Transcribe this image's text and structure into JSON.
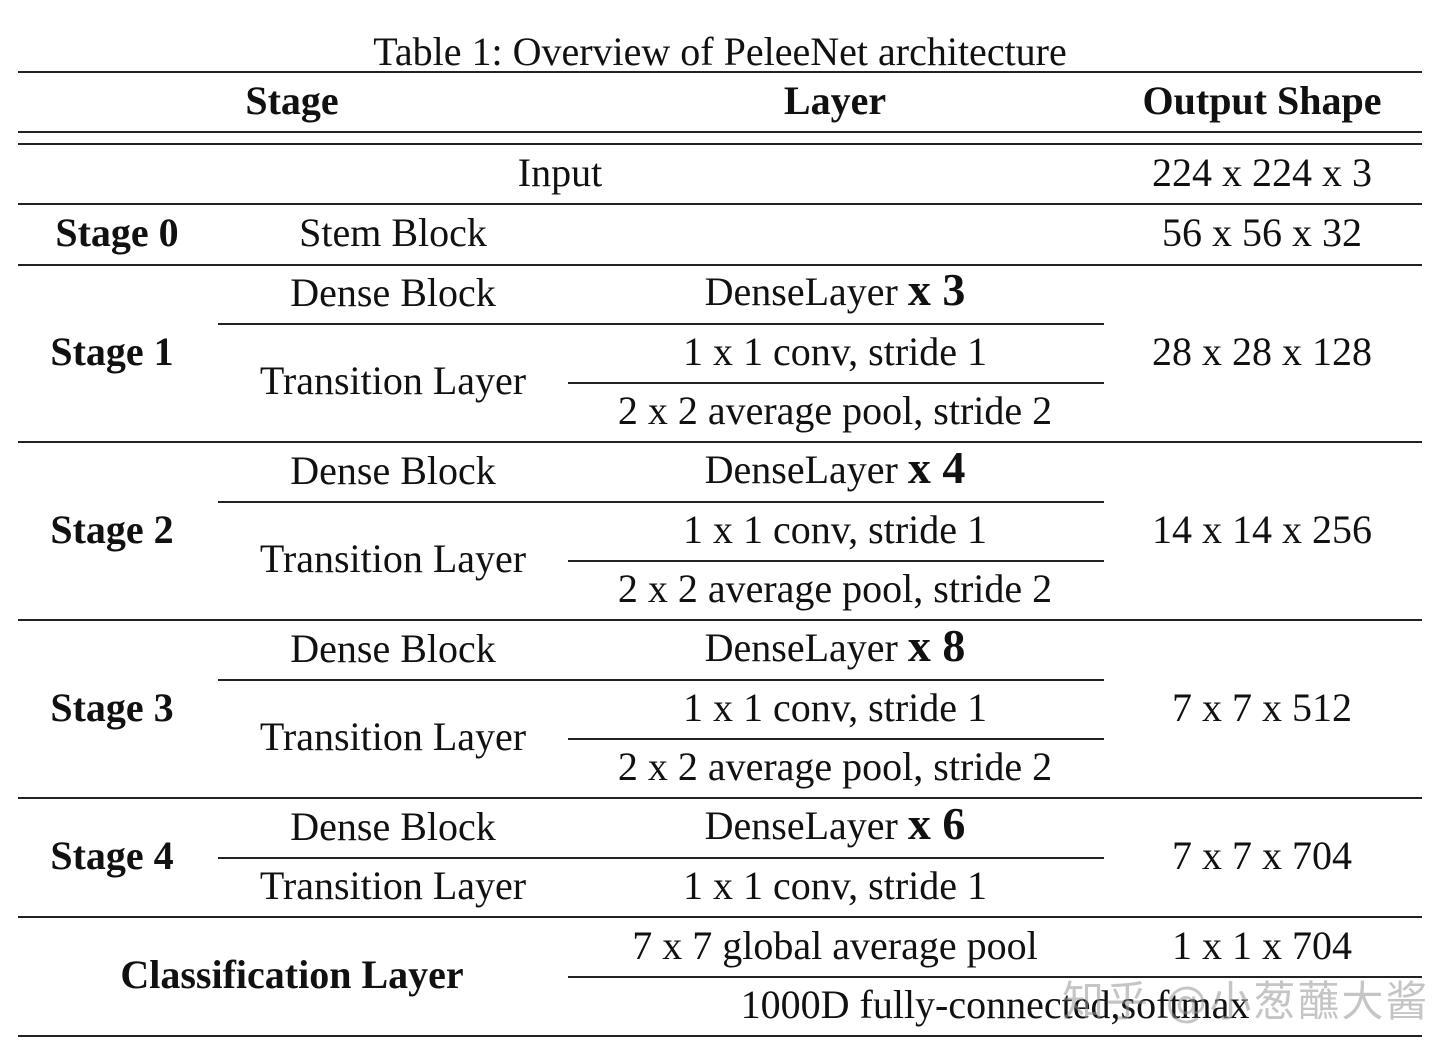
{
  "caption": "Table 1: Overview of PeleeNet architecture",
  "headers": {
    "stage": "Stage",
    "layer": "Layer",
    "output": "Output Shape"
  },
  "input": {
    "label": "Input",
    "output": "224 x 224 x 3"
  },
  "stage0": {
    "stage": "Stage 0",
    "block": "Stem Block",
    "output": "56 x 56 x 32"
  },
  "stage1": {
    "stage": "Stage 1",
    "dense_block": "Dense Block",
    "dense_layer": "DenseLayer",
    "dense_mult": "x 3",
    "transition": "Transition Layer",
    "conv": "1 x 1 conv, stride 1",
    "pool": "2 x 2 average pool, stride 2",
    "output": "28 x 28 x 128"
  },
  "stage2": {
    "stage": "Stage 2",
    "dense_block": "Dense Block",
    "dense_layer": "DenseLayer",
    "dense_mult": "x 4",
    "transition": "Transition Layer",
    "conv": "1 x 1 conv, stride 1",
    "pool": "2 x 2 average pool, stride 2",
    "output": "14 x 14 x 256"
  },
  "stage3": {
    "stage": "Stage 3",
    "dense_block": "Dense Block",
    "dense_layer": "DenseLayer",
    "dense_mult": "x 8",
    "transition": "Transition Layer",
    "conv": "1 x 1 conv, stride 1",
    "pool": "2 x 2 average pool, stride 2",
    "output": "7 x 7 x 512"
  },
  "stage4": {
    "stage": "Stage 4",
    "dense_block": "Dense Block",
    "dense_layer": "DenseLayer",
    "dense_mult": "x 6",
    "transition": "Transition Layer",
    "conv": "1 x 1 conv, stride 1",
    "output": "7 x 7 x 704"
  },
  "classification": {
    "label": "Classification Layer",
    "pool": "7 x 7 global average pool",
    "pool_output": "1 x 1 x 704",
    "fc": "1000D fully-connected,softmax"
  },
  "watermark": "知乎 @小葱蘸大酱"
}
